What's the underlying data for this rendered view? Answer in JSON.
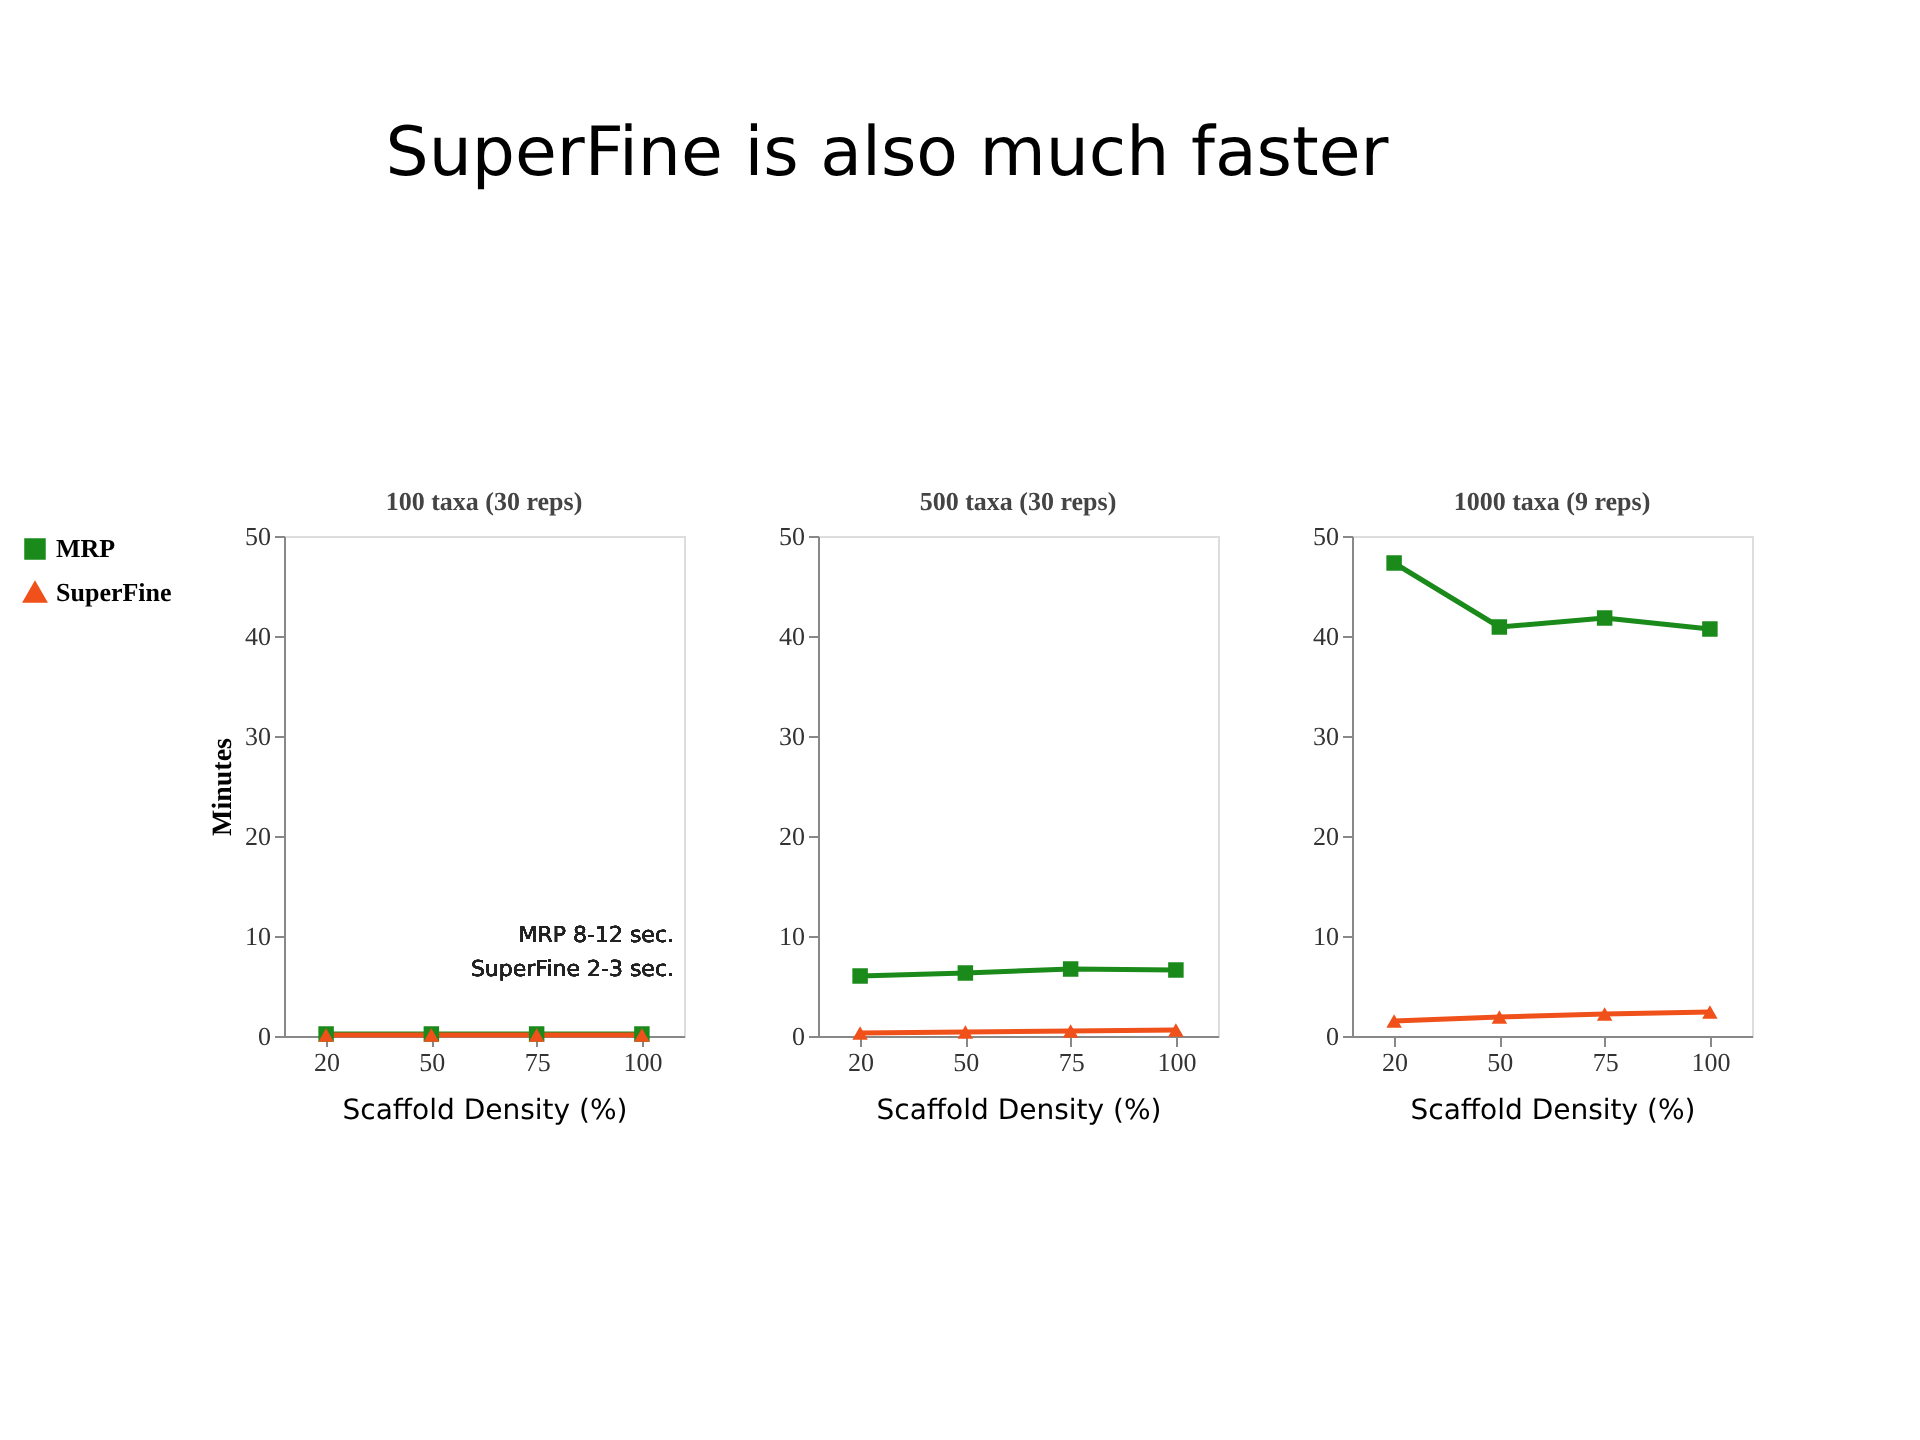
{
  "chart_data": [
    {
      "type": "line",
      "title": "100 taxa (30 reps)",
      "xlabel": "Scaffold Density (%)",
      "ylabel": "Minutes",
      "categories": [
        "20",
        "50",
        "75",
        "100"
      ],
      "ylim": [
        0,
        50
      ],
      "yticks": [
        0,
        10,
        20,
        30,
        40,
        50
      ],
      "grid": false,
      "legend": "left",
      "series": [
        {
          "name": "MRP",
          "color": "#1a8a1a",
          "marker": "square",
          "values": [
            0.2,
            0.2,
            0.2,
            0.2
          ]
        },
        {
          "name": "SuperFine",
          "color": "#f0501a",
          "marker": "triangle",
          "values": [
            0.1,
            0.1,
            0.1,
            0.1
          ]
        }
      ],
      "annotations": [
        "SuperFine is also much faster",
        "MRP  8-12 sec.",
        "SuperFine  2-3 sec."
      ]
    },
    {
      "type": "line",
      "title": "500 taxa (30 reps)",
      "xlabel": "Scaffold Density (%)",
      "categories": [
        "20",
        "50",
        "75",
        "100"
      ],
      "ylim": [
        0,
        50
      ],
      "yticks": [
        0,
        10,
        20,
        30,
        40,
        50
      ],
      "grid": false,
      "legend": false,
      "series": [
        {
          "color": "#1a8a1a",
          "marker": "square",
          "values": [
            6.0,
            6.3,
            6.7,
            6.6
          ]
        },
        {
          "color": "#f0501a",
          "marker": "triangle",
          "values": [
            0.3,
            0.4,
            0.5,
            0.6
          ]
        }
      ]
    },
    {
      "type": "line",
      "title": "1000 taxa (9 reps)",
      "xlabel": "Scaffold Density (%)",
      "categories": [
        "20",
        "50",
        "75",
        "100"
      ],
      "ylim": [
        0,
        50
      ],
      "yticks": [
        0,
        10,
        20,
        30,
        40,
        50
      ],
      "grid": false,
      "legend": false,
      "series": [
        {
          "color": "#1a8a1a",
          "marker": "square",
          "values": [
            47.3,
            40.9,
            41.8,
            40.7
          ]
        },
        {
          "color": "#f0501a",
          "marker": "triangle",
          "values": [
            1.5,
            1.9,
            2.2,
            2.4
          ]
        }
      ]
    }
  ]
}
